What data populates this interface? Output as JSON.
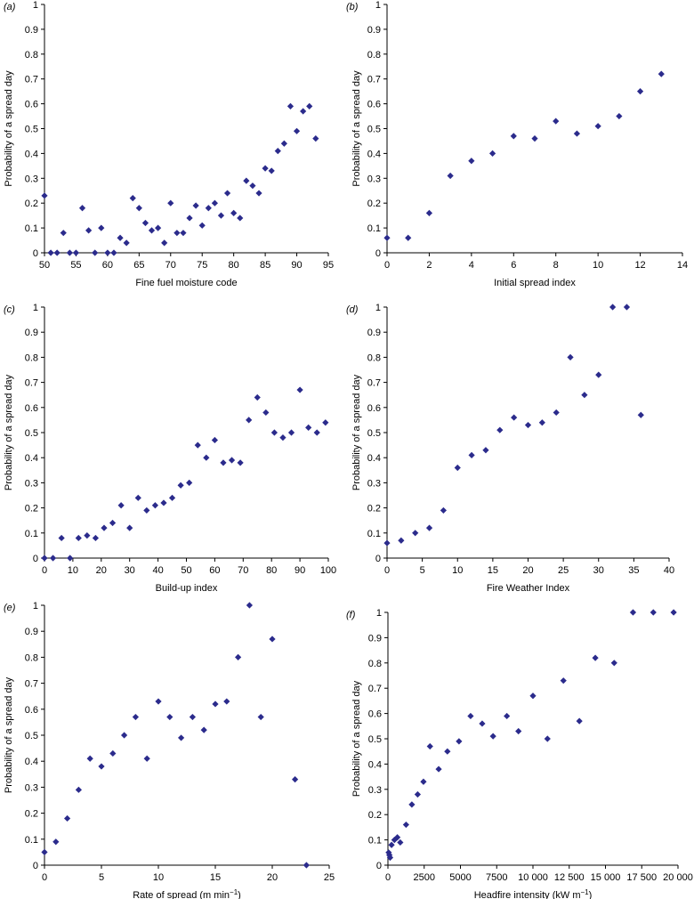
{
  "chart_data": [
    {
      "type": "scatter",
      "panel_label": "(a)",
      "xlabel": "Fine fuel moisture code",
      "ylabel": "Probability of a spread day",
      "xlim": [
        50,
        95
      ],
      "ylim": [
        0,
        1
      ],
      "xticks": [
        "50",
        "55",
        "60",
        "65",
        "70",
        "75",
        "80",
        "85",
        "90",
        "95"
      ],
      "yticks": [
        "0",
        "0.1",
        "0.2",
        "0.3",
        "0.4",
        "0.5",
        "0.6",
        "0.7",
        "0.8",
        "0.9",
        "1"
      ],
      "marker_color": "#2b2b8c",
      "points": [
        [
          50,
          0.23
        ],
        [
          51,
          0
        ],
        [
          52,
          0
        ],
        [
          53,
          0.08
        ],
        [
          54,
          0
        ],
        [
          55,
          0
        ],
        [
          56,
          0.18
        ],
        [
          57,
          0.09
        ],
        [
          58,
          0
        ],
        [
          59,
          0.1
        ],
        [
          60,
          0
        ],
        [
          61,
          0
        ],
        [
          62,
          0.06
        ],
        [
          63,
          0.04
        ],
        [
          64,
          0.22
        ],
        [
          65,
          0.18
        ],
        [
          66,
          0.12
        ],
        [
          67,
          0.09
        ],
        [
          68,
          0.1
        ],
        [
          69,
          0.04
        ],
        [
          70,
          0.2
        ],
        [
          71,
          0.08
        ],
        [
          72,
          0.08
        ],
        [
          73,
          0.14
        ],
        [
          74,
          0.19
        ],
        [
          75,
          0.11
        ],
        [
          76,
          0.18
        ],
        [
          77,
          0.2
        ],
        [
          78,
          0.15
        ],
        [
          79,
          0.24
        ],
        [
          80,
          0.16
        ],
        [
          81,
          0.14
        ],
        [
          82,
          0.29
        ],
        [
          83,
          0.27
        ],
        [
          84,
          0.24
        ],
        [
          85,
          0.34
        ],
        [
          86,
          0.33
        ],
        [
          87,
          0.41
        ],
        [
          88,
          0.44
        ],
        [
          89,
          0.59
        ],
        [
          90,
          0.49
        ],
        [
          91,
          0.57
        ],
        [
          92,
          0.59
        ],
        [
          93,
          0.46
        ]
      ]
    },
    {
      "type": "scatter",
      "panel_label": "(b)",
      "xlabel": "Initial spread index",
      "ylabel": "Probability of a spread day",
      "xlim": [
        0,
        14
      ],
      "ylim": [
        0,
        1
      ],
      "xticks": [
        "0",
        "2",
        "4",
        "6",
        "8",
        "10",
        "12",
        "14"
      ],
      "yticks": [
        "0",
        "0.1",
        "0.2",
        "0.3",
        "0.4",
        "0.5",
        "0.6",
        "0.7",
        "0.8",
        "0.9",
        "1"
      ],
      "marker_color": "#2b2b8c",
      "points": [
        [
          0,
          0.06
        ],
        [
          1,
          0.06
        ],
        [
          2,
          0.16
        ],
        [
          3,
          0.31
        ],
        [
          4,
          0.37
        ],
        [
          5,
          0.4
        ],
        [
          6,
          0.47
        ],
        [
          7,
          0.46
        ],
        [
          8,
          0.53
        ],
        [
          9,
          0.48
        ],
        [
          10,
          0.51
        ],
        [
          11,
          0.55
        ],
        [
          12,
          0.65
        ],
        [
          13,
          0.72
        ]
      ]
    },
    {
      "type": "scatter",
      "panel_label": "(c)",
      "xlabel": "Build-up index",
      "ylabel": "Probability of a spread day",
      "xlim": [
        0,
        100
      ],
      "ylim": [
        0,
        1
      ],
      "xticks": [
        "0",
        "10",
        "20",
        "30",
        "40",
        "50",
        "60",
        "70",
        "80",
        "90",
        "100"
      ],
      "yticks": [
        "0",
        "0.1",
        "0.2",
        "0.3",
        "0.4",
        "0.5",
        "0.6",
        "0.7",
        "0.8",
        "0.9",
        "1"
      ],
      "marker_color": "#2b2b8c",
      "points": [
        [
          0,
          0
        ],
        [
          3,
          0
        ],
        [
          6,
          0.08
        ],
        [
          9,
          0
        ],
        [
          12,
          0.08
        ],
        [
          15,
          0.09
        ],
        [
          18,
          0.08
        ],
        [
          21,
          0.12
        ],
        [
          24,
          0.14
        ],
        [
          27,
          0.21
        ],
        [
          30,
          0.12
        ],
        [
          33,
          0.24
        ],
        [
          36,
          0.19
        ],
        [
          39,
          0.21
        ],
        [
          42,
          0.22
        ],
        [
          45,
          0.24
        ],
        [
          48,
          0.29
        ],
        [
          51,
          0.3
        ],
        [
          54,
          0.45
        ],
        [
          57,
          0.4
        ],
        [
          60,
          0.47
        ],
        [
          63,
          0.38
        ],
        [
          66,
          0.39
        ],
        [
          69,
          0.38
        ],
        [
          72,
          0.55
        ],
        [
          75,
          0.64
        ],
        [
          78,
          0.58
        ],
        [
          81,
          0.5
        ],
        [
          84,
          0.48
        ],
        [
          87,
          0.5
        ],
        [
          90,
          0.67
        ],
        [
          93,
          0.52
        ],
        [
          96,
          0.5
        ],
        [
          99,
          0.54
        ]
      ]
    },
    {
      "type": "scatter",
      "panel_label": "(d)",
      "xlabel": "Fire Weather Index",
      "ylabel": "Probability of a spread day",
      "xlim": [
        0,
        40
      ],
      "ylim": [
        0,
        1
      ],
      "xticks": [
        "0",
        "5",
        "10",
        "15",
        "20",
        "25",
        "30",
        "35",
        "40"
      ],
      "yticks": [
        "0",
        "0.1",
        "0.2",
        "0.3",
        "0.4",
        "0.5",
        "0.6",
        "0.7",
        "0.8",
        "0.9",
        "1"
      ],
      "marker_color": "#2b2b8c",
      "points": [
        [
          0,
          0.06
        ],
        [
          2,
          0.07
        ],
        [
          4,
          0.1
        ],
        [
          6,
          0.12
        ],
        [
          8,
          0.19
        ],
        [
          10,
          0.36
        ],
        [
          12,
          0.41
        ],
        [
          14,
          0.43
        ],
        [
          16,
          0.51
        ],
        [
          18,
          0.56
        ],
        [
          20,
          0.53
        ],
        [
          22,
          0.54
        ],
        [
          24,
          0.58
        ],
        [
          26,
          0.8
        ],
        [
          28,
          0.65
        ],
        [
          30,
          0.73
        ],
        [
          32,
          1
        ],
        [
          34,
          1
        ],
        [
          36,
          0.57
        ]
      ]
    },
    {
      "type": "scatter",
      "panel_label": "(e)",
      "xlabel": "Rate of spread (m min−1)",
      "ylabel": "Probability of a spread day",
      "xlim": [
        0,
        25
      ],
      "ylim": [
        0,
        1
      ],
      "xticks": [
        "0",
        "5",
        "10",
        "15",
        "20",
        "25"
      ],
      "yticks": [
        "0",
        "0.1",
        "0.2",
        "0.3",
        "0.4",
        "0.5",
        "0.6",
        "0.7",
        "0.8",
        "0.9",
        "1"
      ],
      "marker_color": "#2b2b8c",
      "points": [
        [
          0,
          0.05
        ],
        [
          1,
          0.09
        ],
        [
          2,
          0.18
        ],
        [
          3,
          0.29
        ],
        [
          4,
          0.41
        ],
        [
          5,
          0.38
        ],
        [
          6,
          0.43
        ],
        [
          7,
          0.5
        ],
        [
          8,
          0.57
        ],
        [
          9,
          0.41
        ],
        [
          10,
          0.63
        ],
        [
          11,
          0.57
        ],
        [
          12,
          0.49
        ],
        [
          13,
          0.57
        ],
        [
          14,
          0.52
        ],
        [
          15,
          0.62
        ],
        [
          16,
          0.63
        ],
        [
          17,
          0.8
        ],
        [
          18,
          1
        ],
        [
          19,
          0.57
        ],
        [
          20,
          0.87
        ],
        [
          22,
          0.33
        ],
        [
          23,
          0
        ]
      ]
    },
    {
      "type": "scatter",
      "panel_label": "(f)",
      "xlabel": "Headfire intensity (kW m−1)",
      "ylabel": "Probability of a spread day",
      "xlim": [
        0,
        20000
      ],
      "ylim": [
        0,
        1
      ],
      "xticks": [
        "0",
        "2500",
        "5000",
        "7500",
        "10 000",
        "12 500",
        "15 000",
        "17 500",
        "20 000"
      ],
      "yticks": [
        "0",
        "0.1",
        "0.2",
        "0.3",
        "0.4",
        "0.5",
        "0.6",
        "0.7",
        "0.8",
        "0.9",
        "1"
      ],
      "marker_color": "#2b2b8c",
      "points": [
        [
          50,
          0.05
        ],
        [
          100,
          0.04
        ],
        [
          150,
          0.03
        ],
        [
          250,
          0.08
        ],
        [
          450,
          0.1
        ],
        [
          650,
          0.11
        ],
        [
          850,
          0.09
        ],
        [
          1250,
          0.16
        ],
        [
          1650,
          0.24
        ],
        [
          2050,
          0.28
        ],
        [
          2450,
          0.33
        ],
        [
          2900,
          0.47
        ],
        [
          3500,
          0.38
        ],
        [
          4100,
          0.45
        ],
        [
          4900,
          0.49
        ],
        [
          5700,
          0.59
        ],
        [
          6500,
          0.56
        ],
        [
          7250,
          0.51
        ],
        [
          8200,
          0.59
        ],
        [
          9000,
          0.53
        ],
        [
          10000,
          0.67
        ],
        [
          11000,
          0.5
        ],
        [
          12100,
          0.73
        ],
        [
          13200,
          0.57
        ],
        [
          14300,
          0.82
        ],
        [
          15600,
          0.8
        ],
        [
          16900,
          1
        ],
        [
          18300,
          1
        ],
        [
          19700,
          1
        ]
      ]
    }
  ]
}
